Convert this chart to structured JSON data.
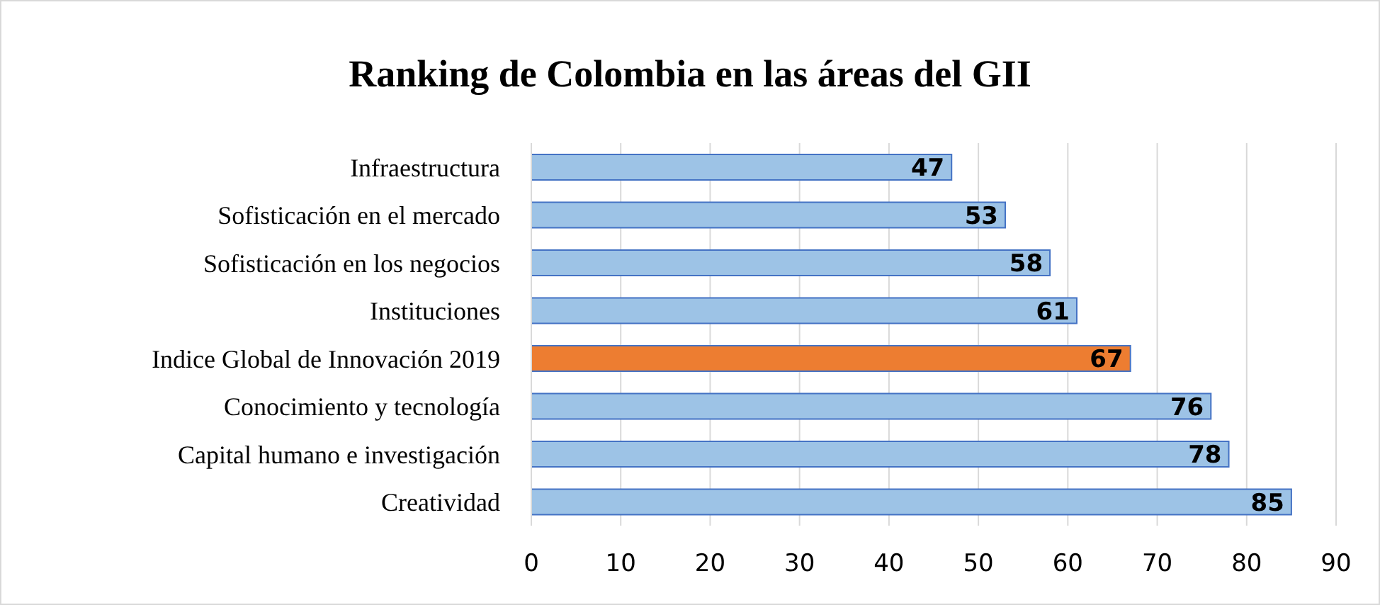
{
  "chart_data": {
    "type": "bar",
    "orientation": "horizontal",
    "title": "Ranking de Colombia en las áreas del GII",
    "categories": [
      "Infraestructura",
      "Sofisticación en el mercado",
      "Sofisticación en los negocios",
      "Instituciones",
      "Indice Global de Innovación 2019",
      "Conocimiento y tecnología",
      "Capital humano e investigación",
      "Creatividad"
    ],
    "values": [
      47,
      53,
      58,
      61,
      67,
      76,
      78,
      85
    ],
    "colors": [
      "#9dc3e6",
      "#9dc3e6",
      "#9dc3e6",
      "#9dc3e6",
      "#ed7d31",
      "#9dc3e6",
      "#9dc3e6",
      "#9dc3e6"
    ],
    "xlim": [
      0,
      90
    ],
    "xticks": [
      0,
      10,
      20,
      30,
      40,
      50,
      60,
      70,
      80,
      90
    ],
    "grid": "x",
    "data_labels": true
  }
}
